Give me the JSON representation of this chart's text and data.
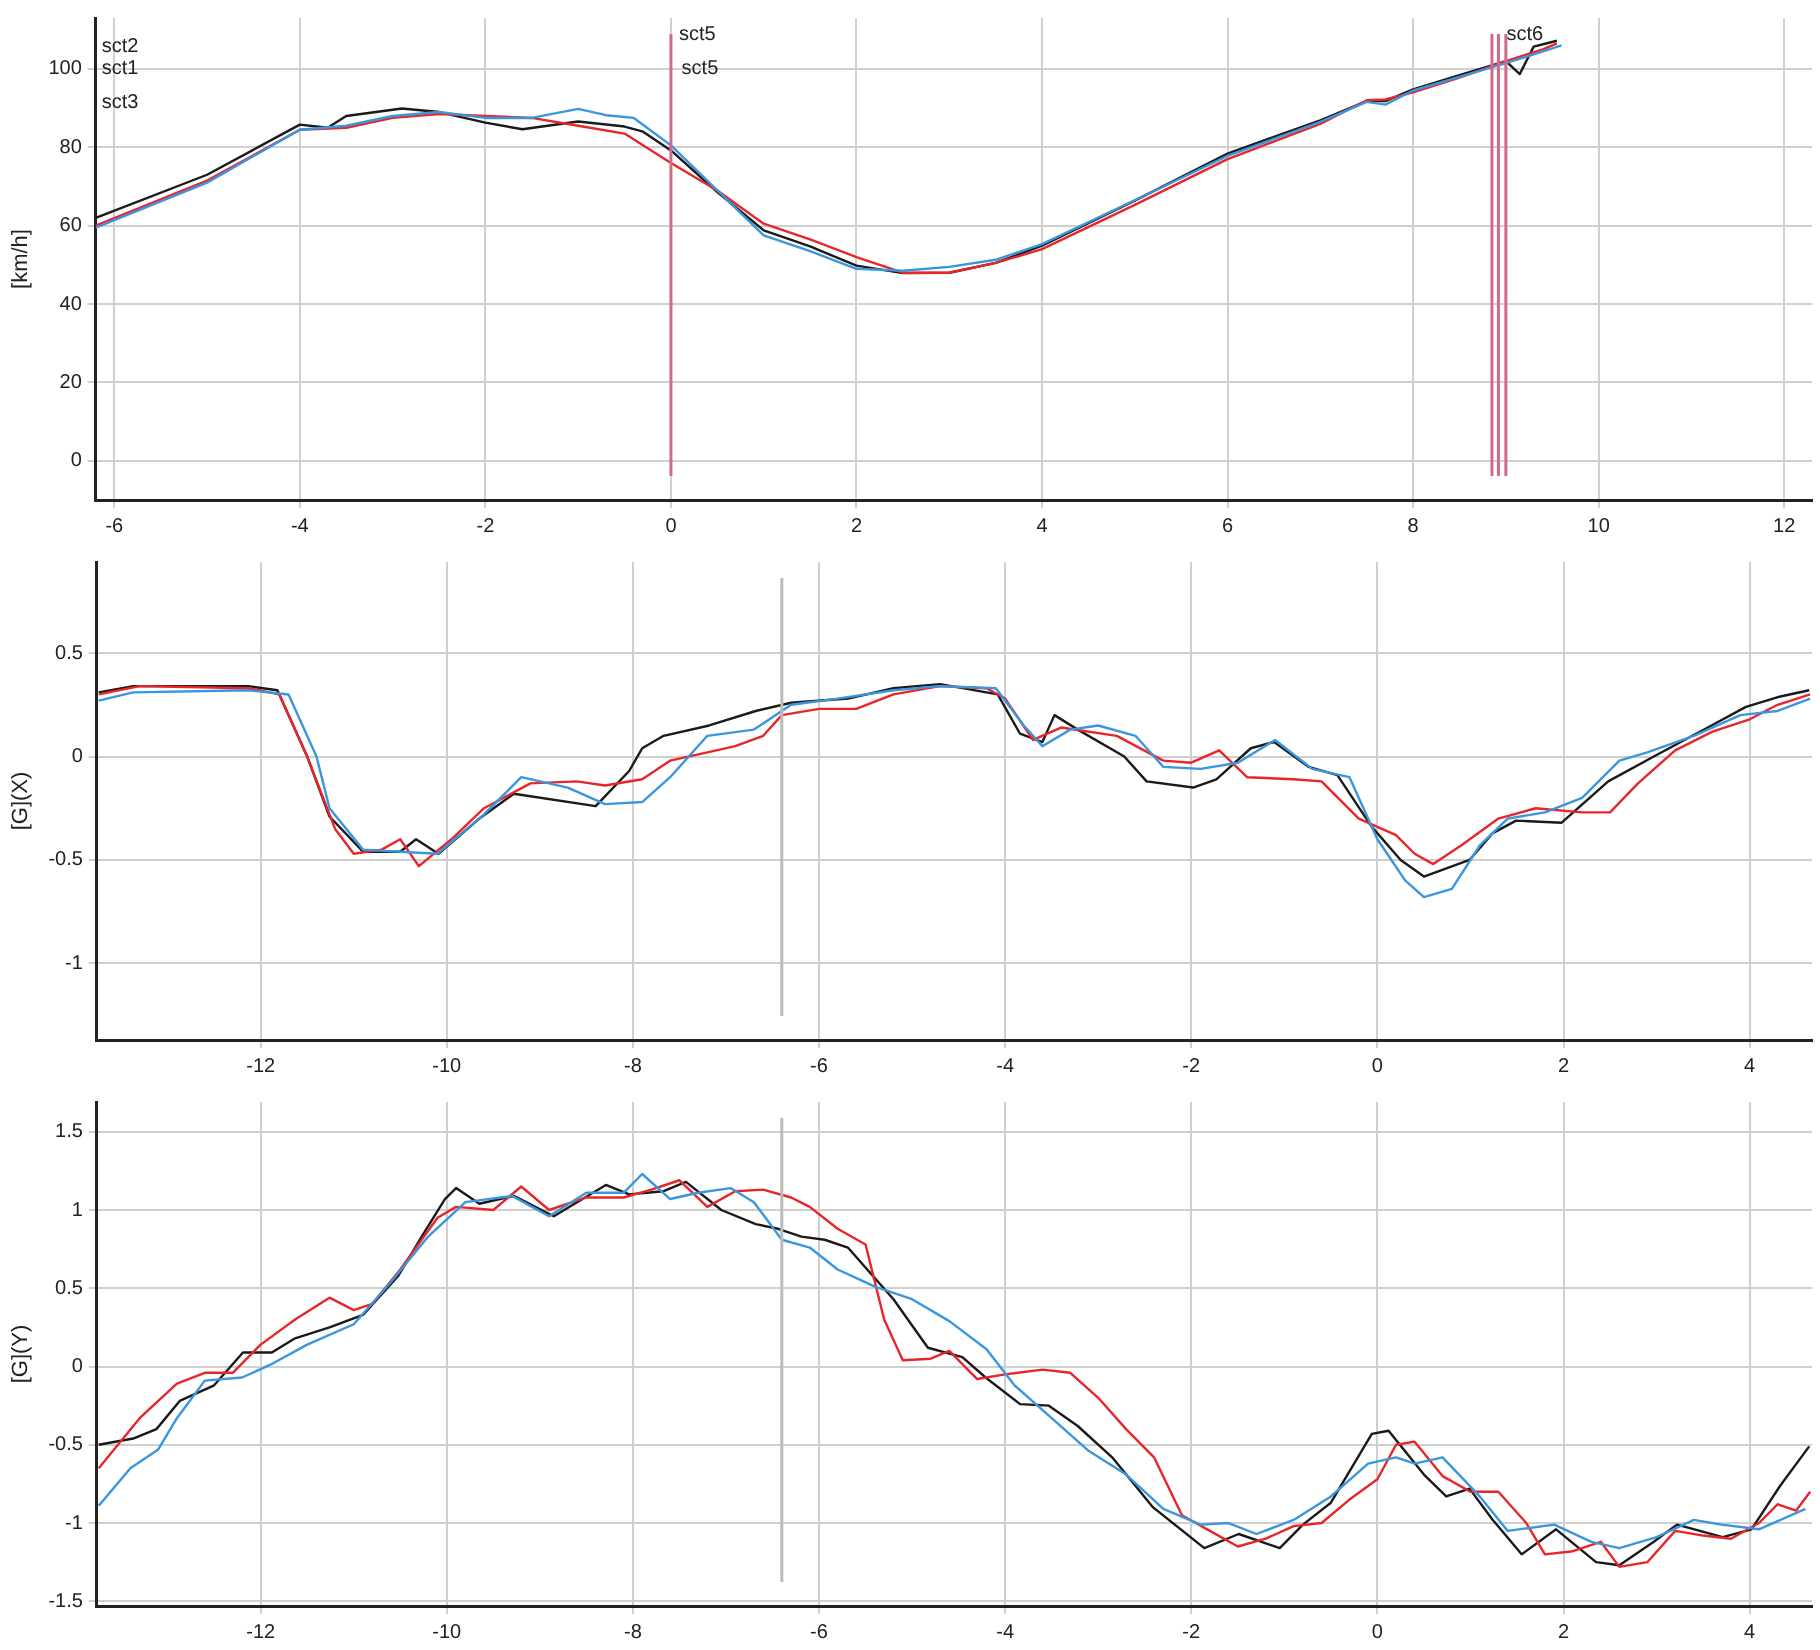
{
  "chart_data": [
    {
      "type": "line",
      "ylabel": "[km/h]",
      "xlim": [
        -6.2,
        12.3
      ],
      "xticks": [
        -6,
        -4,
        -2,
        0,
        2,
        4,
        6,
        8,
        10,
        12
      ],
      "ylim": [
        -10,
        113
      ],
      "yticks": [
        0,
        20,
        40,
        60,
        80,
        100
      ],
      "grid": true,
      "legend": false,
      "series": [
        {
          "color": "#3a96dd",
          "x": [
            -6.2,
            -5,
            -4,
            -3.5,
            -3,
            -2.5,
            -2,
            -1.5,
            -1,
            -0.7,
            -0.4,
            0,
            0.5,
            1,
            1.5,
            2,
            2.5,
            3,
            3.5,
            4,
            5,
            6,
            7,
            7.5,
            7.7,
            8,
            8.5,
            9,
            9.3,
            9.6
          ],
          "values": [
            59.5,
            71,
            84.5,
            85.5,
            88,
            89,
            87.5,
            87.5,
            89.8,
            88.2,
            87.5,
            80.5,
            69,
            57.5,
            53.5,
            49,
            48.5,
            49.5,
            51.3,
            55.3,
            66.5,
            77.8,
            86.5,
            91.6,
            90.9,
            94.5,
            98,
            101.5,
            103.7,
            106
          ]
        },
        {
          "color": "#e8262a",
          "x": [
            -6.2,
            -5,
            -4,
            -3.5,
            -3,
            -2.5,
            -2,
            -1.5,
            -1,
            -0.5,
            0,
            0.5,
            1,
            1.5,
            2,
            2.5,
            3,
            3.5,
            4,
            5,
            6,
            7,
            7.5,
            7.7,
            8,
            8.5,
            9,
            9.4,
            9.55
          ],
          "values": [
            60,
            71.5,
            84.5,
            85,
            87.5,
            88.5,
            88,
            87.5,
            85.5,
            83.5,
            76,
            69,
            60.5,
            56.5,
            52,
            48,
            48,
            50.5,
            54,
            65.3,
            77,
            86,
            92,
            92.2,
            94,
            97.8,
            102,
            105,
            106.5
          ]
        },
        {
          "color": "#1a1a1a",
          "x": [
            -6.2,
            -5,
            -4,
            -3.7,
            -3.5,
            -2.9,
            -2.5,
            -2,
            -1.6,
            -1,
            -0.5,
            -0.3,
            0,
            0.5,
            1,
            1.5,
            2,
            2.5,
            3,
            3.5,
            4,
            5,
            6,
            7,
            7.5,
            7.7,
            8,
            8.5,
            9,
            9.15,
            9.3,
            9.55
          ],
          "values": [
            62,
            73,
            85.8,
            85,
            88,
            89.9,
            89,
            86.3,
            84.6,
            86.6,
            85.3,
            84,
            79.2,
            68.6,
            58.8,
            54.7,
            49.8,
            47.9,
            48,
            50.5,
            54.9,
            66.4,
            78.4,
            86.9,
            91.8,
            91.8,
            94.8,
            98.4,
            102,
            98.7,
            105.7,
            107.2
          ]
        }
      ],
      "ref_lines": [
        {
          "axis": "x",
          "value": 0,
          "color": "#d06a8a",
          "label": "sct5"
        },
        {
          "axis": "x",
          "value": 8.85,
          "color": "#d06a8a"
        },
        {
          "axis": "x",
          "value": 8.92,
          "color": "#d06a8a",
          "label": "sct6"
        },
        {
          "axis": "x",
          "value": 9,
          "color": "#d06a8a"
        }
      ],
      "annotations": [
        "sct2",
        "sct1",
        "sct3",
        {
          "text": "sct5",
          "x": 0.05,
          "y": 100
        }
      ]
    },
    {
      "type": "line",
      "ylabel": "[G](X)",
      "xlim": [
        -13.76,
        4.67
      ],
      "xticks": [
        -12,
        -10,
        -8,
        -6,
        -4,
        -2,
        0,
        2,
        4
      ],
      "ylim": [
        -1.37,
        0.94
      ],
      "yticks": [
        -1,
        -0.5,
        0,
        0.5
      ],
      "grid": true,
      "legend": false,
      "series": [
        {
          "color": "#3a96dd",
          "x": [
            -13.74,
            -13.37,
            -12.13,
            -11.7,
            -11.4,
            -11.26,
            -10.9,
            -10.5,
            -10.1,
            -9.6,
            -9.2,
            -8.7,
            -8.3,
            -7.9,
            -7.6,
            -7.2,
            -6.7,
            -6.3,
            -5.8,
            -5.2,
            -4.7,
            -4.1,
            -3.8,
            -3.6,
            -3.3,
            -3,
            -2.6,
            -2.3,
            -1.9,
            -1.5,
            -1.1,
            -0.7,
            -0.3,
            0,
            0.3,
            0.5,
            0.8,
            1.1,
            1.4,
            1.8,
            2.2,
            2.6,
            2.9,
            3.4,
            3.9,
            4.3,
            4.65
          ],
          "values": [
            0.27,
            0.31,
            0.32,
            0.3,
            0,
            -0.25,
            -0.45,
            -0.46,
            -0.47,
            -0.28,
            -0.1,
            -0.15,
            -0.23,
            -0.22,
            -0.1,
            0.1,
            0.13,
            0.25,
            0.28,
            0.32,
            0.34,
            0.33,
            0.15,
            0.05,
            0.13,
            0.15,
            0.1,
            -0.05,
            -0.06,
            -0.03,
            0.08,
            -0.06,
            -0.1,
            -0.4,
            -0.6,
            -0.68,
            -0.64,
            -0.43,
            -0.3,
            -0.27,
            -0.2,
            -0.02,
            0.02,
            0.1,
            0.2,
            0.22,
            0.28
          ]
        },
        {
          "color": "#e8262a",
          "x": [
            -13.74,
            -13.3,
            -12.13,
            -11.8,
            -11.5,
            -11.2,
            -11,
            -10.7,
            -10.5,
            -10.3,
            -9.95,
            -9.6,
            -9.1,
            -8.6,
            -8.3,
            -7.9,
            -7.6,
            -7.2,
            -6.9,
            -6.6,
            -6.4,
            -6,
            -5.6,
            -5.2,
            -4.7,
            -4.2,
            -4,
            -3.7,
            -3.4,
            -2.8,
            -2.3,
            -2,
            -1.7,
            -1.4,
            -0.9,
            -0.6,
            -0.2,
            0.2,
            0.4,
            0.6,
            0.9,
            1.3,
            1.7,
            2.2,
            2.5,
            2.8,
            3.2,
            3.6,
            4,
            4.3,
            4.65
          ],
          "values": [
            0.3,
            0.34,
            0.33,
            0.3,
            0,
            -0.35,
            -0.47,
            -0.45,
            -0.4,
            -0.53,
            -0.4,
            -0.25,
            -0.13,
            -0.12,
            -0.14,
            -0.11,
            -0.02,
            0.02,
            0.05,
            0.1,
            0.2,
            0.23,
            0.23,
            0.3,
            0.34,
            0.33,
            0.28,
            0.08,
            0.14,
            0.1,
            -0.02,
            -0.03,
            0.03,
            -0.1,
            -0.11,
            -0.12,
            -0.3,
            -0.38,
            -0.47,
            -0.52,
            -0.43,
            -0.3,
            -0.25,
            -0.27,
            -0.27,
            -0.13,
            0.03,
            0.12,
            0.18,
            0.25,
            0.3
          ]
        },
        {
          "color": "#1a1a1a",
          "x": [
            -13.74,
            -13.37,
            -12.13,
            -11.82,
            -11.5,
            -11.26,
            -10.9,
            -10.5,
            -10.33,
            -10.09,
            -9.65,
            -9.28,
            -8.4,
            -8.04,
            -7.9,
            -7.67,
            -7.18,
            -6.68,
            -6.3,
            -5.69,
            -5.2,
            -4.7,
            -4.08,
            -3.84,
            -3.6,
            -3.47,
            -3.22,
            -2.72,
            -2.48,
            -1.98,
            -1.73,
            -1.36,
            -1.11,
            -0.74,
            -0.43,
            -0.06,
            0.25,
            0.5,
            0.99,
            1.24,
            1.49,
            1.98,
            2.48,
            2.97,
            3.59,
            3.96,
            4.33,
            4.64
          ],
          "values": [
            0.31,
            0.34,
            0.34,
            0.32,
            0,
            -0.29,
            -0.46,
            -0.46,
            -0.4,
            -0.47,
            -0.3,
            -0.18,
            -0.24,
            -0.07,
            0.04,
            0.1,
            0.15,
            0.22,
            0.26,
            0.28,
            0.33,
            0.35,
            0.3,
            0.11,
            0.07,
            0.2,
            0.13,
            0,
            -0.12,
            -0.15,
            -0.11,
            0.04,
            0.07,
            -0.05,
            -0.09,
            -0.34,
            -0.5,
            -0.58,
            -0.5,
            -0.37,
            -0.31,
            -0.32,
            -0.12,
            0,
            0.15,
            0.24,
            0.29,
            0.32
          ]
        }
      ],
      "ref_lines": [
        {
          "axis": "x",
          "value": -6.4,
          "color": "#bbbbbb"
        }
      ]
    },
    {
      "type": "line",
      "ylabel": "[G](Y)",
      "xlim": [
        -13.76,
        4.67
      ],
      "xticks": [
        -12,
        -10,
        -8,
        -6,
        -4,
        -2,
        0,
        2,
        4
      ],
      "ylim": [
        -1.53,
        1.69
      ],
      "yticks": [
        -1.5,
        -1,
        -0.5,
        0,
        0.5,
        1,
        1.5
      ],
      "grid": true,
      "legend": false,
      "series": [
        {
          "color": "#3a96dd",
          "x": [
            -13.74,
            -13.4,
            -13.1,
            -12.9,
            -12.6,
            -12.2,
            -11.9,
            -11.5,
            -11,
            -10.6,
            -10.2,
            -9.8,
            -9.3,
            -8.9,
            -8.5,
            -8.1,
            -7.9,
            -7.6,
            -7.3,
            -6.95,
            -6.7,
            -6.4,
            -6.1,
            -5.8,
            -5.4,
            -5,
            -4.6,
            -4.2,
            -3.9,
            -3.5,
            -3.1,
            -2.7,
            -2.3,
            -1.9,
            -1.6,
            -1.3,
            -0.9,
            -0.5,
            -0.1,
            0.2,
            0.4,
            0.7,
            1.1,
            1.4,
            1.9,
            2.3,
            2.6,
            3,
            3.4,
            3.7,
            4.1,
            4.6
          ],
          "values": [
            -0.89,
            -0.65,
            -0.53,
            -0.33,
            -0.09,
            -0.07,
            0.01,
            0.14,
            0.27,
            0.54,
            0.83,
            1.05,
            1.09,
            0.96,
            1.11,
            1.11,
            1.23,
            1.07,
            1.11,
            1.14,
            1.05,
            0.81,
            0.76,
            0.62,
            0.51,
            0.43,
            0.29,
            0.11,
            -0.12,
            -0.33,
            -0.54,
            -0.69,
            -0.91,
            -1.01,
            -1,
            -1.07,
            -0.98,
            -0.83,
            -0.62,
            -0.58,
            -0.62,
            -0.58,
            -0.83,
            -1.05,
            -1.01,
            -1.12,
            -1.16,
            -1.09,
            -0.98,
            -1.01,
            -1.04,
            -0.91
          ]
        },
        {
          "color": "#e8262a",
          "x": [
            -13.74,
            -13.3,
            -12.9,
            -12.6,
            -12.3,
            -12,
            -11.63,
            -11.26,
            -11,
            -10.8,
            -10.5,
            -10.1,
            -9.9,
            -9.5,
            -9.2,
            -8.9,
            -8.5,
            -8.1,
            -7.8,
            -7.5,
            -7.2,
            -6.9,
            -6.6,
            -6.3,
            -6.1,
            -5.8,
            -5.5,
            -5.3,
            -5.1,
            -4.8,
            -4.6,
            -4.3,
            -4,
            -3.6,
            -3.3,
            -3,
            -2.7,
            -2.4,
            -2.1,
            -1.8,
            -1.5,
            -1.2,
            -0.9,
            -0.6,
            -0.3,
            0,
            0.2,
            0.4,
            0.7,
            1,
            1.3,
            1.6,
            1.8,
            2.1,
            2.4,
            2.6,
            2.9,
            3.2,
            3.5,
            3.8,
            4.1,
            4.3,
            4.5,
            4.65
          ],
          "values": [
            -0.65,
            -0.33,
            -0.11,
            -0.04,
            -0.04,
            0.14,
            0.3,
            0.44,
            0.36,
            0.4,
            0.62,
            0.95,
            1.02,
            1,
            1.15,
            1,
            1.08,
            1.08,
            1.13,
            1.19,
            1.02,
            1.12,
            1.13,
            1.08,
            1.02,
            0.88,
            0.78,
            0.3,
            0.04,
            0.05,
            0.1,
            -0.08,
            -0.05,
            -0.02,
            -0.04,
            -0.2,
            -0.4,
            -0.58,
            -0.95,
            -1.05,
            -1.15,
            -1.1,
            -1.02,
            -1,
            -0.85,
            -0.72,
            -0.5,
            -0.48,
            -0.7,
            -0.8,
            -0.8,
            -1,
            -1.2,
            -1.18,
            -1.12,
            -1.28,
            -1.25,
            -1.05,
            -1.08,
            -1.1,
            -1,
            -0.88,
            -0.92,
            -0.8
          ]
        },
        {
          "color": "#1a1a1a",
          "x": [
            -13.74,
            -13.37,
            -13.12,
            -12.87,
            -12.5,
            -12.19,
            -11.88,
            -11.63,
            -11.26,
            -10.9,
            -10.52,
            -10.27,
            -10.02,
            -9.9,
            -9.65,
            -9.28,
            -8.85,
            -8.29,
            -8.04,
            -7.67,
            -7.43,
            -7.05,
            -6.68,
            -6.44,
            -6.19,
            -5.94,
            -5.69,
            -5.2,
            -4.83,
            -4.46,
            -4.21,
            -3.84,
            -3.53,
            -3.22,
            -2.85,
            -2.41,
            -1.86,
            -1.49,
            -1.05,
            -0.8,
            -0.5,
            -0.06,
            0.12,
            0.5,
            0.74,
            0.99,
            1.24,
            1.55,
            1.92,
            2.35,
            2.6,
            2.97,
            3.22,
            3.71,
            4.02,
            4.33,
            4.64
          ],
          "values": [
            -0.5,
            -0.46,
            -0.4,
            -0.22,
            -0.12,
            0.09,
            0.09,
            0.18,
            0.25,
            0.33,
            0.58,
            0.83,
            1.07,
            1.14,
            1.04,
            1.09,
            0.96,
            1.16,
            1.1,
            1.12,
            1.18,
            1,
            0.91,
            0.88,
            0.83,
            0.81,
            0.76,
            0.43,
            0.12,
            0.06,
            -0.07,
            -0.24,
            -0.25,
            -0.38,
            -0.58,
            -0.9,
            -1.16,
            -1.07,
            -1.16,
            -1.01,
            -0.87,
            -0.43,
            -0.41,
            -0.69,
            -0.83,
            -0.78,
            -0.98,
            -1.2,
            -1.04,
            -1.25,
            -1.27,
            -1.12,
            -1.01,
            -1.09,
            -1.04,
            -0.76,
            -0.51
          ]
        }
      ],
      "ref_lines": [
        {
          "axis": "x",
          "value": -6.4,
          "color": "#bbbbbb"
        }
      ]
    }
  ]
}
